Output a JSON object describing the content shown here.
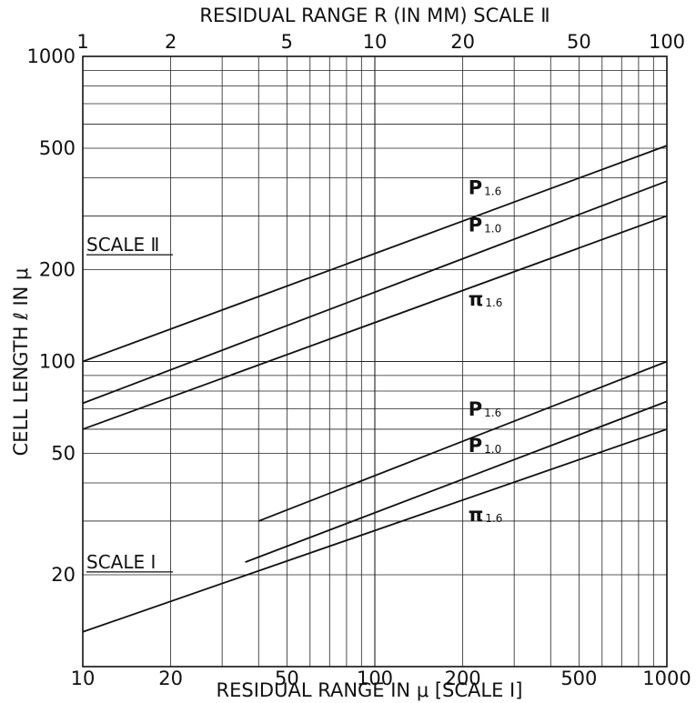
{
  "chart_data": {
    "type": "line",
    "title": "",
    "top_axis": {
      "label": "RESIDUAL RANGE  R (IN MM) SCALE Ⅱ",
      "scale": "log",
      "range": [
        1,
        100
      ],
      "tick_labels": [
        "1",
        "2",
        "5",
        "10",
        "20",
        "50",
        "100"
      ]
    },
    "bottom_axis": {
      "label": "RESIDUAL RANGE IN  μ [SCALE Ⅰ]",
      "scale": "log",
      "range": [
        10,
        1000
      ],
      "tick_labels": [
        "10",
        "20",
        "50",
        "100",
        "200",
        "500",
        "1000"
      ]
    },
    "left_axis": {
      "label": "CELL LENGTH  ℓ  IN  μ",
      "scale": "log",
      "range": [
        10,
        1000
      ],
      "tick_labels": [
        "20",
        "50",
        "100",
        "200",
        "500",
        "1000"
      ]
    },
    "grid": true,
    "scale_labels": [
      {
        "text": "SCALE Ⅱ",
        "axis_value": 230
      },
      {
        "text": "SCALE Ⅰ",
        "axis_value": 21
      }
    ],
    "series": [
      {
        "name": "P",
        "subscript": "1.6",
        "group": "SCALE Ⅱ",
        "x": [
          10,
          1000
        ],
        "y": [
          100,
          510
        ]
      },
      {
        "name": "P",
        "subscript": "1.0",
        "group": "SCALE Ⅱ",
        "x": [
          10,
          1000
        ],
        "y": [
          73,
          390
        ]
      },
      {
        "name": "π",
        "subscript": "1.6",
        "group": "SCALE Ⅱ",
        "x": [
          10,
          1000
        ],
        "y": [
          60,
          300
        ]
      },
      {
        "name": "P",
        "subscript": "1.6",
        "group": "SCALE Ⅰ",
        "x": [
          40,
          1000
        ],
        "y": [
          30,
          100
        ]
      },
      {
        "name": "P",
        "subscript": "1.0",
        "group": "SCALE Ⅰ",
        "x": [
          36,
          1000
        ],
        "y": [
          22,
          74
        ]
      },
      {
        "name": "π",
        "subscript": "1.6",
        "group": "SCALE Ⅰ",
        "x": [
          10,
          1000
        ],
        "y": [
          13,
          60
        ]
      }
    ]
  }
}
